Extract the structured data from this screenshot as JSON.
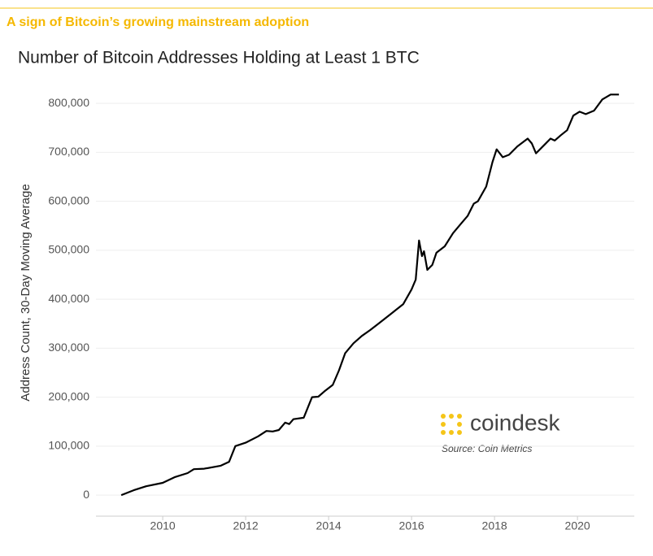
{
  "chart_data": {
    "type": "line",
    "kicker": "A sign of Bitcoin’s growing mainstream adoption",
    "title": "Number of Bitcoin Addresses Holding at Least 1 BTC",
    "y_label": "Address Count, 30-Day Moving Average",
    "brand": "coindesk",
    "source": "Source: Coin Metrics",
    "color": "#000000",
    "x": [
      2009.0,
      2009.3,
      2009.6,
      2010.0,
      2010.3,
      2010.6,
      2010.75,
      2011.0,
      2011.4,
      2011.6,
      2011.75,
      2012.0,
      2012.3,
      2012.5,
      2012.65,
      2012.8,
      2012.95,
      2013.05,
      2013.15,
      2013.4,
      2013.6,
      2013.75,
      2013.9,
      2014.1,
      2014.25,
      2014.4,
      2014.6,
      2014.8,
      2015.0,
      2015.2,
      2015.5,
      2015.8,
      2016.0,
      2016.1,
      2016.18,
      2016.25,
      2016.3,
      2016.38,
      2016.5,
      2016.6,
      2016.8,
      2017.0,
      2017.2,
      2017.35,
      2017.5,
      2017.6,
      2017.8,
      2017.95,
      2018.05,
      2018.2,
      2018.35,
      2018.55,
      2018.8,
      2018.9,
      2019.0,
      2019.2,
      2019.35,
      2019.45,
      2019.6,
      2019.75,
      2019.9,
      2020.05,
      2020.2,
      2020.4,
      2020.6,
      2020.8,
      2021.0
    ],
    "values": [
      0,
      10000,
      18000,
      25000,
      37000,
      45000,
      53000,
      54000,
      60000,
      68000,
      100000,
      107000,
      120000,
      131000,
      130000,
      133000,
      148000,
      145000,
      155000,
      158000,
      200000,
      201000,
      212000,
      225000,
      255000,
      290000,
      310000,
      325000,
      337000,
      350000,
      370000,
      390000,
      420000,
      440000,
      520000,
      488000,
      498000,
      460000,
      470000,
      495000,
      508000,
      535000,
      555000,
      570000,
      595000,
      600000,
      630000,
      680000,
      706000,
      690000,
      695000,
      712000,
      728000,
      718000,
      698000,
      715000,
      728000,
      724000,
      735000,
      745000,
      775000,
      783000,
      778000,
      785000,
      808000,
      818000,
      818000
    ],
    "xlim": [
      2008.39,
      2021.37
    ],
    "xticks": [
      2010,
      2012,
      2014,
      2016,
      2018,
      2020
    ],
    "ylim": [
      -43000,
      845000
    ],
    "yticks": [
      0,
      {
        "value": 100000,
        "label": "100,000"
      },
      {
        "value": 200000,
        "label": "200,000"
      },
      {
        "value": 300000,
        "label": "300,000"
      },
      {
        "value": 400000,
        "label": "400,000"
      },
      {
        "value": 500000,
        "label": "500,000"
      },
      {
        "value": 600000,
        "label": "600,000"
      },
      {
        "value": 700000,
        "label": "700,000"
      },
      {
        "value": 800000,
        "label": "800,000"
      }
    ],
    "grid": true
  }
}
